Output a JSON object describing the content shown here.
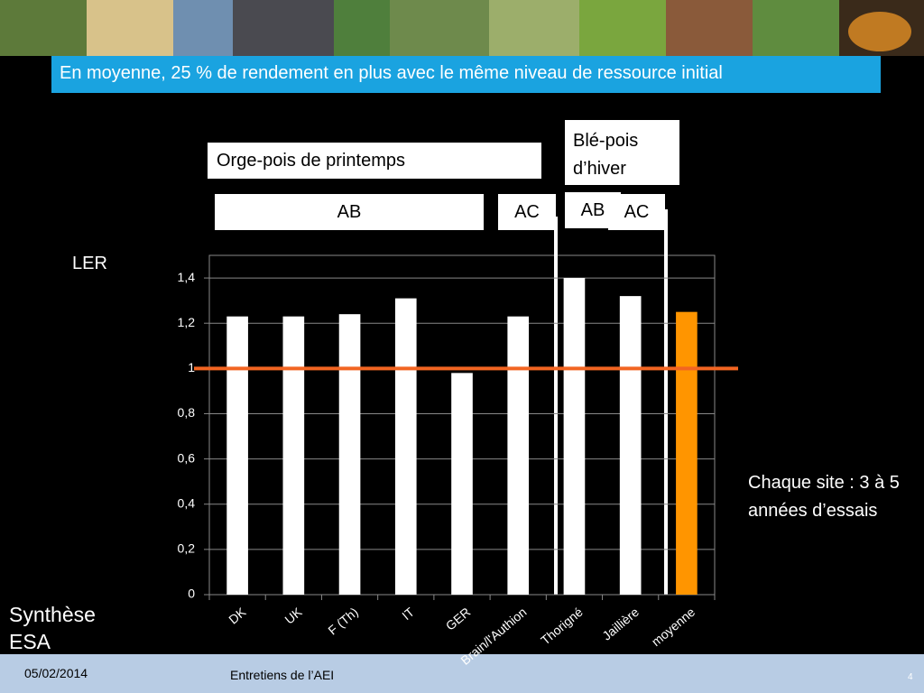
{
  "slide": {
    "banner": "En moyenne, 25 % de rendement en plus avec le même niveau de ressource initial",
    "groups": {
      "spring": "Orge-pois de printemps",
      "winter": "Blé-pois d’hiver"
    },
    "systems": [
      "AB",
      "AC",
      "AB",
      "AC"
    ],
    "note": "Chaque site : 3 à 5 années d’essais",
    "source": "Synthèse ESA",
    "footer": {
      "date": "05/02/2014",
      "event": "Entretiens de l’AEI",
      "page": "4"
    }
  },
  "chart_data": {
    "type": "bar",
    "y_label": "LER",
    "categories": [
      "DK",
      "UK",
      "F (Th)",
      "IT",
      "GER",
      "Brain/l'Authion",
      "Thorigné",
      "Jaillière",
      "moyenne"
    ],
    "values": [
      1.23,
      1.23,
      1.24,
      1.31,
      0.98,
      1.23,
      1.4,
      1.32,
      1.25
    ],
    "colors": [
      "#ffffff",
      "#ffffff",
      "#ffffff",
      "#ffffff",
      "#ffffff",
      "#ffffff",
      "#ffffff",
      "#ffffff",
      "#ff9500"
    ],
    "ylim": [
      0,
      1.5
    ],
    "yticks": [
      0,
      {
        "value": 0.2,
        "label": "0,2"
      },
      {
        "value": 0.4,
        "label": "0,4"
      },
      {
        "value": 0.6,
        "label": "0,6"
      },
      {
        "value": 0.8,
        "label": "0,8"
      },
      1,
      {
        "value": 1.2,
        "label": "1,2"
      },
      {
        "value": 1.4,
        "label": "1,4"
      }
    ],
    "grid": true,
    "reference_line": {
      "value": 1,
      "color": "#f26522"
    }
  }
}
